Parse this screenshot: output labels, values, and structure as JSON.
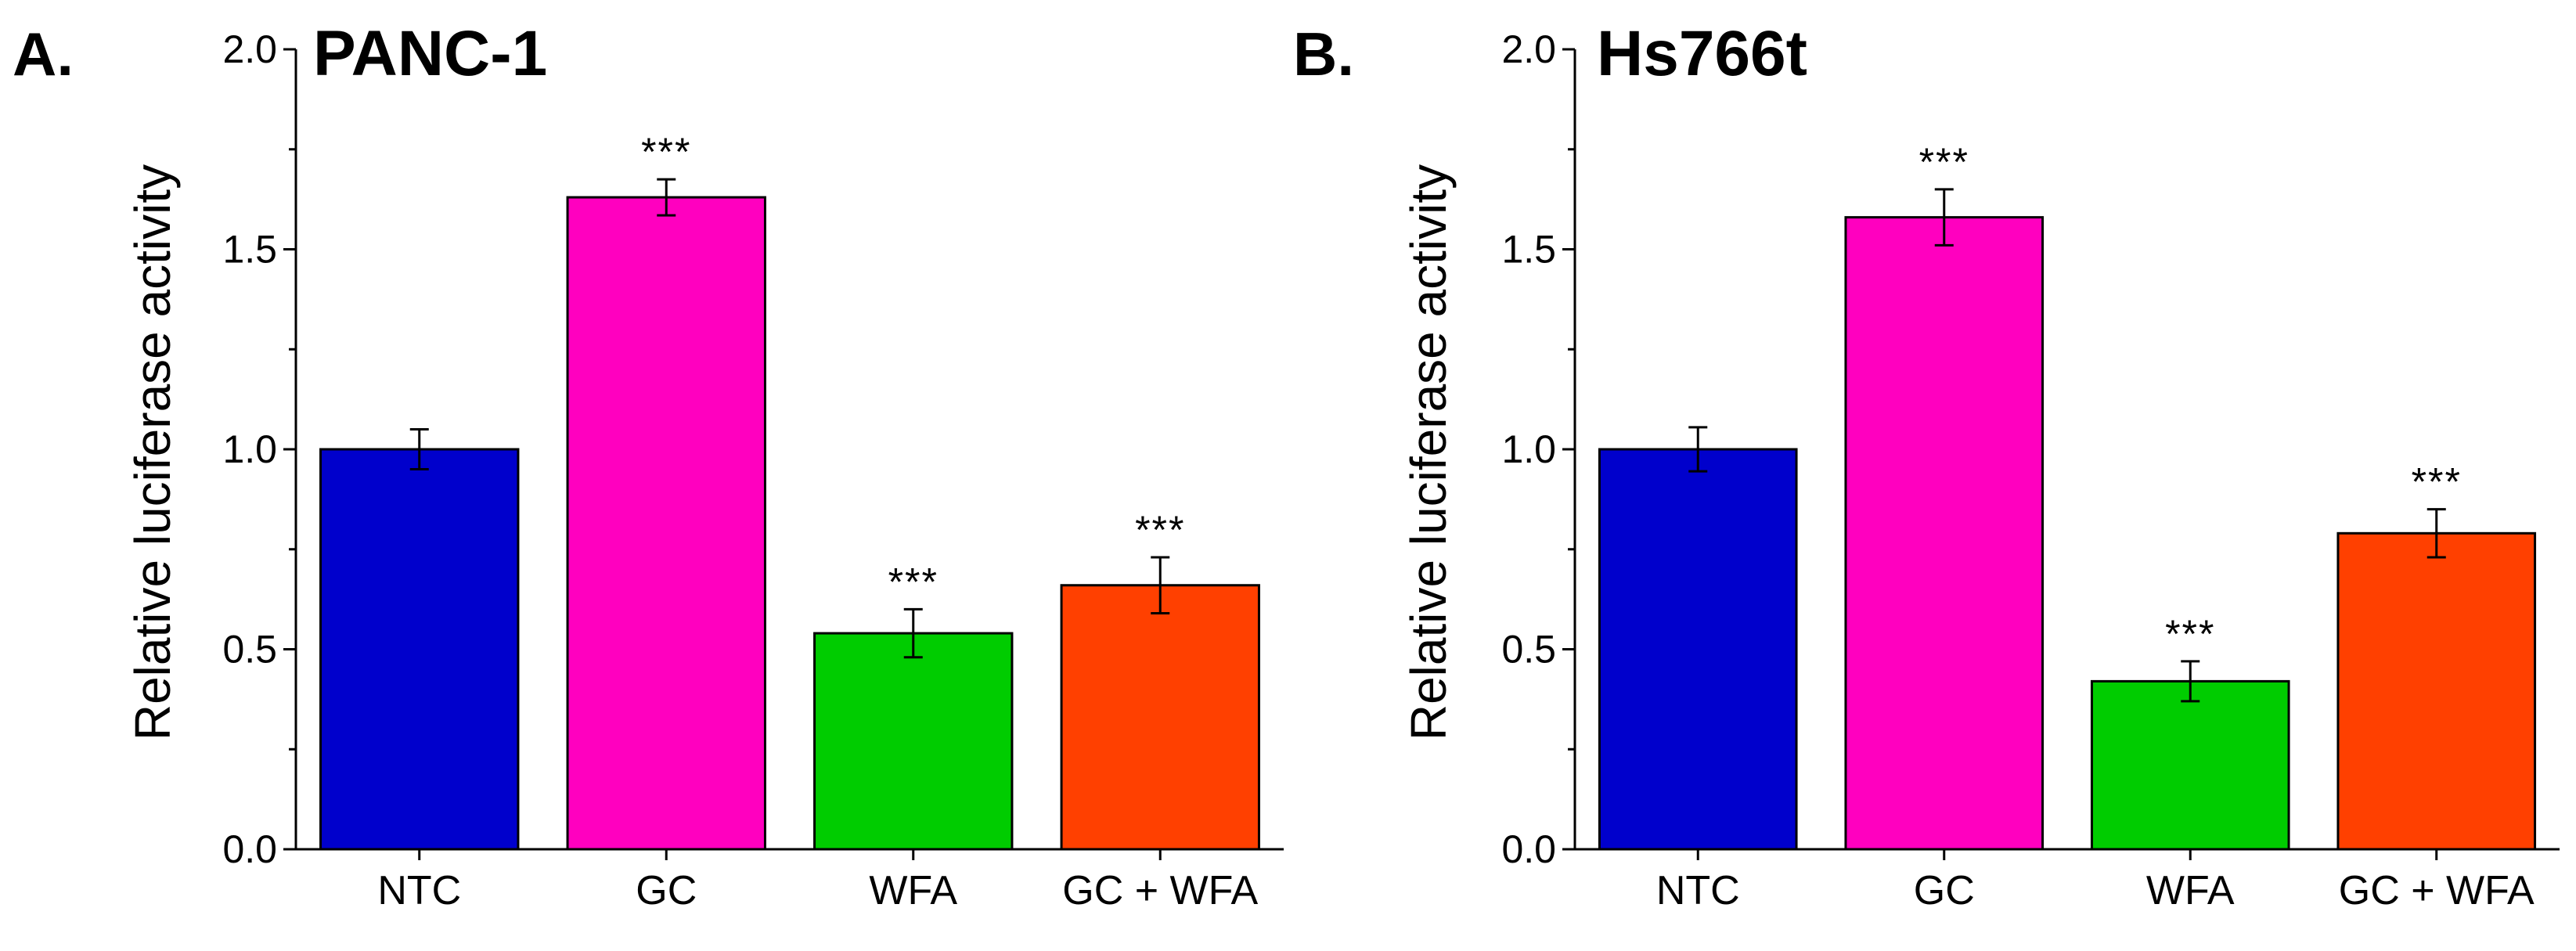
{
  "chart_data": [
    {
      "type": "bar",
      "panel_label": "A.",
      "title": "PANC-1",
      "ylabel": "Relative luciferase activity",
      "xlabel": "",
      "ylim": [
        0,
        2.0
      ],
      "yticks": [
        "0.0",
        "0.5",
        "1.0",
        "1.5",
        "2.0"
      ],
      "categories": [
        "NTC",
        "GC",
        "WFA",
        "GC + WFA"
      ],
      "values": [
        1.0,
        1.63,
        0.54,
        0.66
      ],
      "errors": [
        0.05,
        0.045,
        0.06,
        0.07
      ],
      "colors": [
        "#0000cc",
        "#ff00bf",
        "#00cc00",
        "#ff4000"
      ],
      "significance": [
        "",
        "***",
        "***",
        "***"
      ]
    },
    {
      "type": "bar",
      "panel_label": "B.",
      "title": "Hs766t",
      "ylabel": "Relative luciferase activity",
      "xlabel": "",
      "ylim": [
        0,
        2.0
      ],
      "yticks": [
        "0.0",
        "0.5",
        "1.0",
        "1.5",
        "2.0"
      ],
      "categories": [
        "NTC",
        "GC",
        "WFA",
        "GC + WFA"
      ],
      "values": [
        1.0,
        1.58,
        0.42,
        0.79
      ],
      "errors": [
        0.055,
        0.07,
        0.05,
        0.06
      ],
      "colors": [
        "#0000cc",
        "#ff00bf",
        "#00cc00",
        "#ff4000"
      ],
      "significance": [
        "",
        "***",
        "***",
        "***"
      ]
    }
  ]
}
